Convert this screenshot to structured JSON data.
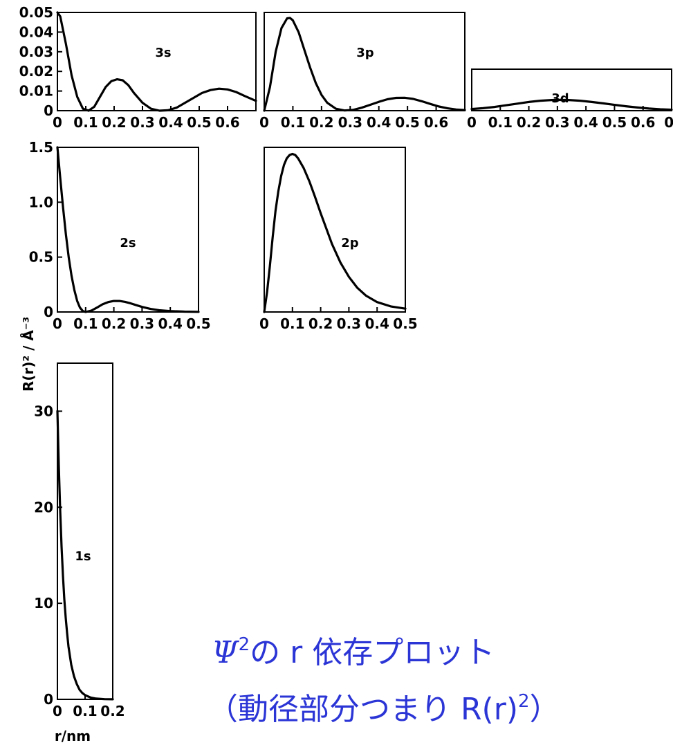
{
  "y_axis_label": "R(r)² / Å⁻³",
  "x_axis_label": "r/nm",
  "caption": {
    "line1_symbol": "Ψ",
    "line1_sup": "2",
    "line1_text": "の r 依存プロット",
    "line2_text": "（動径部分つまり R(r)",
    "line2_sup": "2",
    "line2_end": "）"
  },
  "colors": {
    "caption": "#2b35d6",
    "ink": "#000000"
  },
  "chart_data": [
    {
      "type": "line",
      "name": "3s",
      "title": "3s",
      "xlim": [
        0,
        0.7
      ],
      "ylim": [
        0,
        0.05
      ],
      "xticks": [
        "0",
        "0.1",
        "0.2",
        "0.3",
        "0.4",
        "0.5",
        "0.6"
      ],
      "yticks": [
        "0",
        "0.01",
        "0.02",
        "0.03",
        "0.04",
        "0.05"
      ],
      "x": [
        0,
        0.01,
        0.03,
        0.05,
        0.07,
        0.09,
        0.11,
        0.13,
        0.15,
        0.17,
        0.19,
        0.21,
        0.23,
        0.25,
        0.27,
        0.3,
        0.33,
        0.36,
        0.39,
        0.42,
        0.45,
        0.48,
        0.51,
        0.54,
        0.57,
        0.6,
        0.63,
        0.66,
        0.7
      ],
      "y": [
        0.05,
        0.048,
        0.034,
        0.018,
        0.007,
        0.001,
        0.0,
        0.002,
        0.007,
        0.012,
        0.015,
        0.016,
        0.0155,
        0.013,
        0.009,
        0.004,
        0.001,
        0.0,
        0.0002,
        0.0015,
        0.004,
        0.0065,
        0.009,
        0.0105,
        0.0112,
        0.0108,
        0.0095,
        0.0075,
        0.005
      ]
    },
    {
      "type": "line",
      "name": "3p",
      "title": "3p",
      "xlim": [
        0,
        0.7
      ],
      "ylim": [
        0,
        0.05
      ],
      "xticks": [
        "0",
        "0.1",
        "0.2",
        "0.3",
        "0.4",
        "0.5",
        "0.6"
      ],
      "yticks": [],
      "x": [
        0,
        0.02,
        0.04,
        0.06,
        0.08,
        0.09,
        0.1,
        0.12,
        0.14,
        0.16,
        0.18,
        0.2,
        0.22,
        0.25,
        0.28,
        0.31,
        0.34,
        0.37,
        0.4,
        0.43,
        0.46,
        0.49,
        0.52,
        0.55,
        0.58,
        0.61,
        0.64,
        0.67,
        0.7
      ],
      "y": [
        0.0,
        0.012,
        0.03,
        0.042,
        0.047,
        0.0472,
        0.046,
        0.04,
        0.031,
        0.022,
        0.014,
        0.008,
        0.004,
        0.001,
        0.0001,
        0.0004,
        0.0015,
        0.003,
        0.0045,
        0.0058,
        0.0065,
        0.0066,
        0.006,
        0.0048,
        0.0034,
        0.0021,
        0.0012,
        0.0006,
        0.0003
      ]
    },
    {
      "type": "line",
      "name": "3d",
      "title": "3d",
      "xlim": [
        0,
        0.7
      ],
      "ylim": [
        0,
        0.05
      ],
      "xticks": [
        "0",
        "0.1",
        "0.2",
        "0.3",
        "0.4",
        "0.5",
        "0.6",
        "0."
      ],
      "yticks": [],
      "x": [
        0,
        0.04,
        0.08,
        0.12,
        0.16,
        0.2,
        0.24,
        0.28,
        0.31,
        0.34,
        0.38,
        0.42,
        0.46,
        0.5,
        0.54,
        0.58,
        0.62,
        0.66,
        0.7
      ],
      "y": [
        0.002,
        0.003,
        0.0045,
        0.0065,
        0.0085,
        0.0105,
        0.012,
        0.0128,
        0.013,
        0.0128,
        0.012,
        0.0105,
        0.0088,
        0.007,
        0.0053,
        0.0038,
        0.0026,
        0.0017,
        0.0012
      ]
    },
    {
      "type": "line",
      "name": "2s",
      "title": "2s",
      "xlim": [
        0,
        0.5
      ],
      "ylim": [
        0,
        1.5
      ],
      "xticks": [
        "0",
        "0.1",
        "0.2",
        "0.3",
        "0.4",
        "0.5"
      ],
      "yticks": [
        "0",
        "0.5",
        "1.0",
        "1.5"
      ],
      "x": [
        0,
        0.01,
        0.02,
        0.03,
        0.04,
        0.05,
        0.06,
        0.07,
        0.08,
        0.09,
        0.1,
        0.12,
        0.14,
        0.16,
        0.18,
        0.2,
        0.22,
        0.24,
        0.26,
        0.28,
        0.3,
        0.33,
        0.36,
        0.4,
        0.45,
        0.5
      ],
      "y": [
        1.5,
        1.22,
        0.95,
        0.71,
        0.5,
        0.33,
        0.2,
        0.1,
        0.04,
        0.008,
        0.0,
        0.012,
        0.04,
        0.07,
        0.09,
        0.1,
        0.1,
        0.092,
        0.078,
        0.062,
        0.046,
        0.028,
        0.016,
        0.008,
        0.003,
        0.001
      ]
    },
    {
      "type": "line",
      "name": "2p",
      "title": "2p",
      "xlim": [
        0,
        0.5
      ],
      "ylim": [
        0,
        1.5
      ],
      "xticks": [
        "0",
        "0.1",
        "0.2",
        "0.3",
        "0.4",
        "0.5"
      ],
      "yticks": [],
      "x": [
        0,
        0.01,
        0.02,
        0.03,
        0.04,
        0.05,
        0.06,
        0.07,
        0.08,
        0.09,
        0.1,
        0.11,
        0.12,
        0.14,
        0.16,
        0.18,
        0.2,
        0.22,
        0.24,
        0.27,
        0.3,
        0.33,
        0.36,
        0.4,
        0.45,
        0.5
      ],
      "y": [
        0.0,
        0.18,
        0.42,
        0.68,
        0.92,
        1.1,
        1.24,
        1.34,
        1.4,
        1.43,
        1.44,
        1.43,
        1.4,
        1.31,
        1.19,
        1.05,
        0.9,
        0.76,
        0.62,
        0.45,
        0.32,
        0.22,
        0.15,
        0.09,
        0.05,
        0.03
      ]
    },
    {
      "type": "line",
      "name": "1s",
      "title": "1s",
      "xlim": [
        0,
        0.2
      ],
      "ylim": [
        0,
        35
      ],
      "xticks": [
        "0",
        "0.1",
        "0.2"
      ],
      "yticks": [
        "0",
        "10",
        "20",
        "30"
      ],
      "x": [
        0,
        0.005,
        0.01,
        0.015,
        0.02,
        0.025,
        0.03,
        0.035,
        0.04,
        0.05,
        0.06,
        0.07,
        0.08,
        0.09,
        0.1,
        0.12,
        0.14,
        0.17,
        0.2
      ],
      "y": [
        30,
        24.3,
        19.7,
        15.9,
        12.9,
        10.4,
        8.5,
        6.9,
        5.5,
        3.6,
        2.4,
        1.6,
        1.0,
        0.66,
        0.44,
        0.19,
        0.08,
        0.02,
        0.005
      ]
    }
  ]
}
